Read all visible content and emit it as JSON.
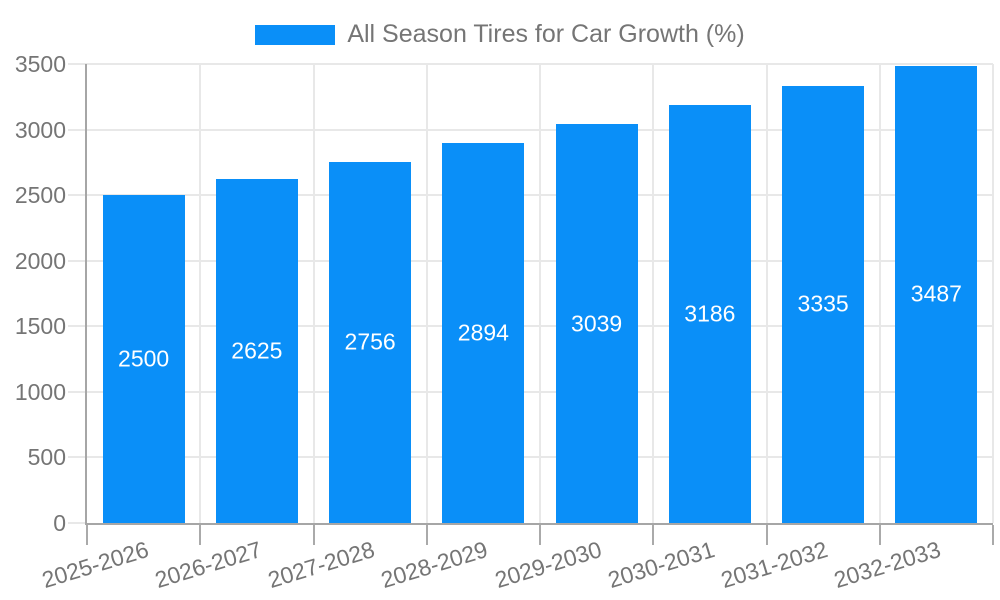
{
  "legend": {
    "label": "All Season Tires for Car Growth (%)"
  },
  "chart_data": {
    "type": "bar",
    "title": "All Season Tires for Car Growth (%)",
    "categories": [
      "2025-2026",
      "2026-2027",
      "2027-2028",
      "2028-2029",
      "2029-2030",
      "2030-2031",
      "2031-2032",
      "2032-2033"
    ],
    "values": [
      2500,
      2625,
      2756,
      2894,
      3039,
      3186,
      3335,
      3487
    ],
    "xlabel": "",
    "ylabel": "",
    "ylim": [
      0,
      3500
    ],
    "yticks": [
      0,
      500,
      1000,
      1500,
      2000,
      2500,
      3000,
      3500
    ],
    "grid": true,
    "legend_position": "top",
    "x_label_rotation_deg": -17,
    "value_labels": "centered-inside-bars"
  },
  "colors": {
    "bar": "#0a8ff8",
    "value_label": "#ffffff",
    "axis_text": "#757575",
    "gridline": "#e8e8e8",
    "axis_line": "#a6a6a6",
    "x_tick": "#aaaaaa",
    "background": "#ffffff"
  }
}
